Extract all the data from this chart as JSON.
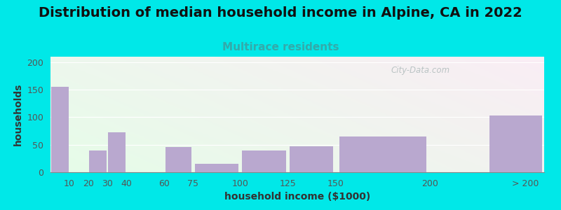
{
  "title": "Distribution of median household income in Alpine, CA in 2022",
  "subtitle": "Multirace residents",
  "xlabel": "household income ($1000)",
  "ylabel": "households",
  "bar_labels": [
    "10",
    "20",
    "30",
    "40",
    "60",
    "75",
    "100",
    "125",
    "150",
    "200",
    "> 200"
  ],
  "bar_values": [
    155,
    0,
    40,
    72,
    0,
    46,
    15,
    40,
    47,
    65,
    103
  ],
  "bar_color": "#b9a8cf",
  "background_outer": "#00e8e8",
  "ylim": [
    0,
    210
  ],
  "yticks": [
    0,
    50,
    100,
    150,
    200
  ],
  "title_fontsize": 14,
  "subtitle_fontsize": 11,
  "subtitle_color": "#33aaaa",
  "axis_label_fontsize": 10,
  "tick_fontsize": 9,
  "watermark_text": "City-Data.com",
  "watermark_color": "#b0bcbc",
  "tick_positions": [
    10,
    20,
    30,
    40,
    60,
    75,
    100,
    125,
    150,
    200,
    250
  ],
  "tick_display": [
    "10",
    "20",
    "30",
    "40",
    "60",
    "75",
    "100",
    "125",
    "150",
    "200",
    "> 200"
  ],
  "bar_lefts": [
    0,
    10,
    20,
    30,
    40,
    60,
    75,
    100,
    125,
    150,
    230
  ],
  "bar_widths": [
    10,
    10,
    10,
    10,
    20,
    15,
    25,
    25,
    25,
    50,
    30
  ],
  "xlim": [
    0,
    260
  ]
}
